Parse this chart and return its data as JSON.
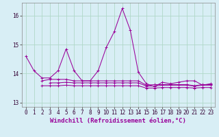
{
  "x": [
    0,
    1,
    2,
    3,
    4,
    5,
    6,
    7,
    8,
    9,
    10,
    11,
    12,
    13,
    14,
    15,
    16,
    17,
    18,
    19,
    20,
    21,
    22,
    23
  ],
  "line1": [
    14.6,
    14.1,
    13.85,
    13.85,
    14.1,
    14.85,
    14.1,
    13.75,
    13.75,
    14.1,
    14.9,
    15.45,
    16.25,
    15.5,
    14.05,
    13.65,
    13.55,
    13.7,
    13.65,
    13.7,
    13.75,
    13.75,
    13.6,
    13.65
  ],
  "line2": [
    null,
    null,
    13.75,
    13.8,
    13.8,
    13.8,
    13.75,
    13.75,
    13.75,
    13.75,
    13.75,
    13.75,
    13.75,
    13.75,
    13.75,
    13.6,
    13.62,
    13.62,
    13.62,
    13.62,
    13.62,
    13.58,
    13.62,
    13.62
  ],
  "line3": [
    null,
    null,
    13.58,
    13.58,
    13.58,
    13.6,
    13.58,
    13.58,
    13.58,
    13.58,
    13.58,
    13.58,
    13.58,
    13.58,
    13.58,
    13.5,
    13.5,
    13.52,
    13.52,
    13.52,
    13.52,
    13.5,
    13.52,
    13.52
  ],
  "line4": [
    null,
    null,
    null,
    13.68,
    13.68,
    13.7,
    13.68,
    13.68,
    13.68,
    13.68,
    13.68,
    13.68,
    13.68,
    13.68,
    13.68,
    13.57,
    13.57,
    13.6,
    13.6,
    13.6,
    13.6,
    13.57,
    13.6,
    13.6
  ],
  "bg_color": "#d8eef5",
  "grid_color": "#b0d8c8",
  "line_color": "#990099",
  "xlabel": "Windchill (Refroidissement éolien,°C)",
  "xlabel_fontsize": 6.5,
  "tick_fontsize": 5.5,
  "ylim": [
    12.85,
    16.45
  ],
  "yticks": [
    13,
    14,
    15,
    16
  ],
  "xticks": [
    0,
    1,
    2,
    3,
    4,
    5,
    6,
    7,
    8,
    9,
    10,
    11,
    12,
    13,
    14,
    15,
    16,
    17,
    18,
    19,
    20,
    21,
    22,
    23
  ]
}
